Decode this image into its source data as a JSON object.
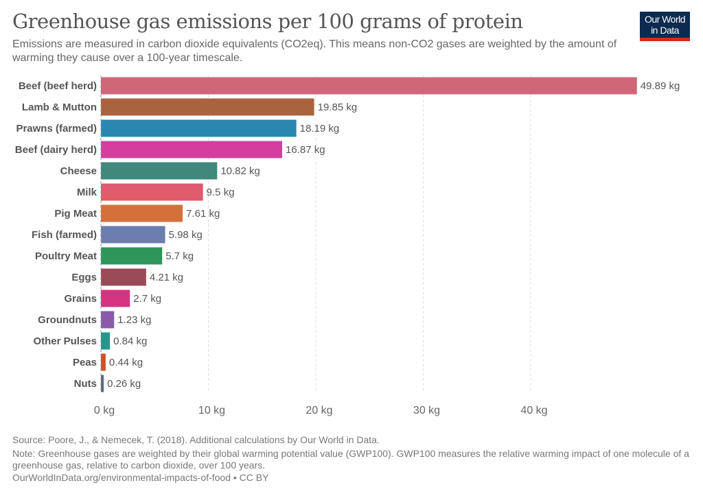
{
  "header": {
    "title": "Greenhouse gas emissions per 100 grams of protein",
    "subtitle": "Emissions are measured in carbon dioxide equivalents (CO2eq). This means non-CO2 gases are weighted by the amount of warming they cause over a 100-year timescale.",
    "logo_line1": "Our World",
    "logo_line2": "in Data"
  },
  "chart_data": {
    "type": "bar",
    "orientation": "horizontal",
    "categories": [
      "Beef (beef herd)",
      "Lamb & Mutton",
      "Prawns (farmed)",
      "Beef (dairy herd)",
      "Cheese",
      "Milk",
      "Pig Meat",
      "Fish (farmed)",
      "Poultry Meat",
      "Eggs",
      "Grains",
      "Groundnuts",
      "Other Pulses",
      "Peas",
      "Nuts"
    ],
    "values": [
      49.89,
      19.85,
      18.19,
      16.87,
      10.82,
      9.5,
      7.61,
      5.98,
      5.7,
      4.21,
      2.7,
      1.23,
      0.84,
      0.44,
      0.26
    ],
    "value_labels": [
      "49.89 kg",
      "19.85 kg",
      "18.19 kg",
      "16.87 kg",
      "10.82 kg",
      "9.5 kg",
      "7.61 kg",
      "5.98 kg",
      "5.7 kg",
      "4.21 kg",
      "2.7 kg",
      "1.23 kg",
      "0.84 kg",
      "0.44 kg",
      "0.26 kg"
    ],
    "colors": [
      "#cf6778",
      "#a9643f",
      "#2a87b0",
      "#d43f9f",
      "#3f887b",
      "#df5a6a",
      "#d4703a",
      "#6a7fb0",
      "#2c965b",
      "#9b4b58",
      "#d63381",
      "#8a5ba8",
      "#26968c",
      "#c7542b",
      "#5b6a80"
    ],
    "xticks": [
      0,
      10,
      20,
      30,
      40
    ],
    "xtick_labels": [
      "0 kg",
      "10 kg",
      "20 kg",
      "30 kg",
      "40 kg"
    ],
    "xlim": [
      0,
      50
    ],
    "grid": "vertical dashed"
  },
  "footer": {
    "source": "Source: Poore, J., & Nemecek, T. (2018). Additional calculations by Our World in Data.",
    "note": "Note: Greenhouse gases are weighted by their global warming potential value (GWP100). GWP100 measures the relative warming impact of one molecule of a greenhouse gas, relative to carbon dioxide, over 100 years.",
    "url": "OurWorldInData.org/environmental-impacts-of-food • CC BY"
  }
}
